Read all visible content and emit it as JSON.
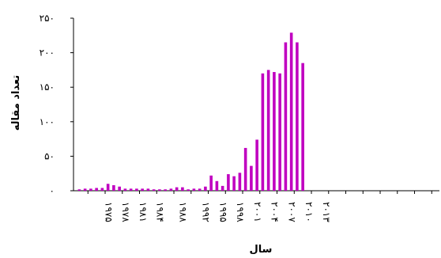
{
  "chart_data": {
    "type": "bar",
    "title": "",
    "xlabel": "سال",
    "ylabel": "تعداد مقاله",
    "ylim": [
      0,
      250
    ],
    "yticks": [
      0,
      50,
      100,
      150,
      200,
      250
    ],
    "ytick_labels": [
      "۰",
      "۵۰",
      "۱۰۰",
      "۱۵۰",
      "۲۰۰",
      "۲۵۰"
    ],
    "xtick_labels": [
      {
        "year": 1975,
        "label": "۱۹۷۵"
      },
      {
        "year": 1978,
        "label": "۱۹۷۸"
      },
      {
        "year": 1981,
        "label": "۱۹۸۱"
      },
      {
        "year": 1984,
        "label": "۱۹۸۴"
      },
      {
        "year": 1988,
        "label": "۱۹۸۸"
      },
      {
        "year": 1992,
        "label": "۱۹۹۲"
      },
      {
        "year": 1995,
        "label": "۱۹۹۵"
      },
      {
        "year": 1998,
        "label": "۱۹۹۸"
      },
      {
        "year": 2001,
        "label": "۲۰۰۱"
      },
      {
        "year": 2004,
        "label": "۲۰۰۴"
      },
      {
        "year": 2007,
        "label": "۲۰۰۷"
      },
      {
        "year": 2010,
        "label": "۲۰۱۰"
      },
      {
        "year": 2013,
        "label": "۲۰۱۳"
      }
    ],
    "bar_color": "#c000c0",
    "categories": [
      1971,
      1972,
      1973,
      1974,
      1975,
      1976,
      1977,
      1978,
      1979,
      1980,
      1981,
      1982,
      1983,
      1984,
      1985,
      1986,
      1987,
      1988,
      1989,
      1990,
      1991,
      1992,
      1993,
      1994,
      1995,
      1996,
      1997,
      1998,
      1999,
      2000,
      2001,
      2002,
      2003,
      2004,
      2005,
      2006,
      2007,
      2008,
      2009,
      2010,
      2011,
      2012,
      2013
    ],
    "values": [
      2,
      3,
      3,
      4,
      4,
      10,
      8,
      6,
      3,
      3,
      3,
      3,
      3,
      2,
      2,
      2,
      3,
      5,
      5,
      2,
      3,
      3,
      6,
      22,
      14,
      7,
      24,
      21,
      26,
      62,
      36,
      74,
      170,
      175,
      172,
      170,
      215,
      229,
      215,
      185,
      0,
      0,
      0
    ],
    "grid": false,
    "legend": "none"
  }
}
